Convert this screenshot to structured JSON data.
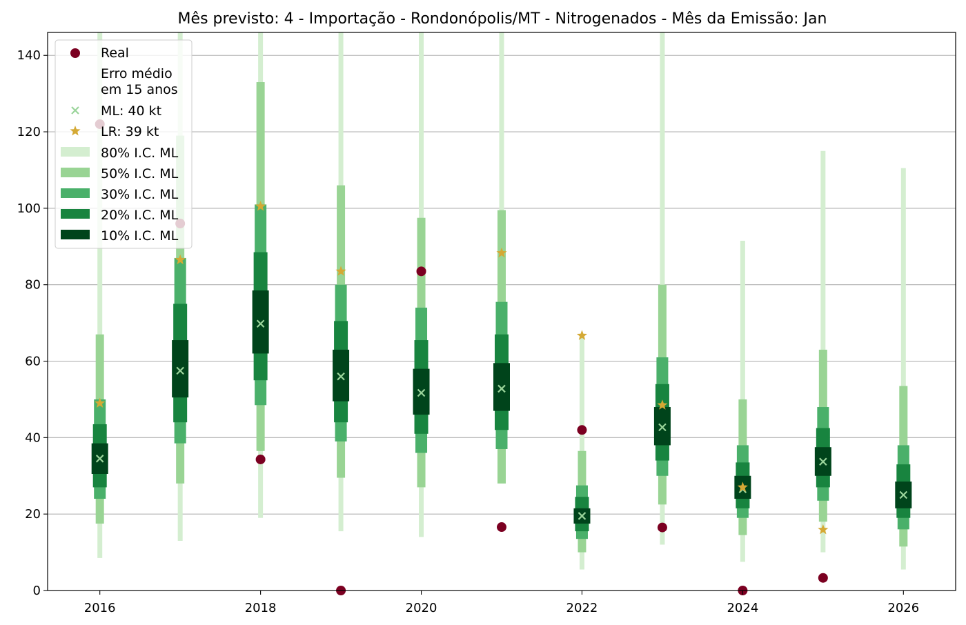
{
  "chart_data": {
    "type": "interval",
    "title": "Mês previsto: 4 - Importação - Rondonópolis/MT - Nitrogenados - Mês da Emissão: Jan",
    "xlabel": "",
    "ylabel": "",
    "xlim": [
      2015.35,
      2026.65
    ],
    "ylim": [
      0,
      146
    ],
    "xticks": [
      2016,
      2018,
      2020,
      2022,
      2024,
      2026
    ],
    "yticks": [
      0,
      20,
      40,
      60,
      80,
      100,
      120,
      140
    ],
    "grid": "horizontal",
    "legend_position": "upper-left",
    "colors": {
      "real": "#7b0021",
      "ml_marker": "#9ad49a",
      "lr_marker": "#d4a935",
      "ci80": "#d4eed0",
      "ci50": "#99d494",
      "ci30": "#4ab06a",
      "ci20": "#18843f",
      "ci10": "#00441b",
      "grid": "#b0b0b0"
    },
    "legend": {
      "real": "Real",
      "header_line1": "Erro médio",
      "header_line2": "em 15 anos",
      "ml": "ML: 40 kt",
      "lr": "LR: 39 kt",
      "ci80": "80% I.C. ML",
      "ci50": "50% I.C. ML",
      "ci30": "30% I.C. ML",
      "ci20": "20% I.C. ML",
      "ci10": "10% I.C. ML"
    },
    "points": [
      {
        "x": 2016,
        "real": 122.0,
        "ml": 34.5,
        "lr": 49.0,
        "ci80": [
          8.5,
          146
        ],
        "ci50": [
          17.5,
          67.0
        ],
        "ci30": [
          24.0,
          50.0
        ],
        "ci20": [
          27.0,
          43.5
        ],
        "ci10": [
          30.5,
          38.5
        ]
      },
      {
        "x": 2017,
        "real": 96.0,
        "ml": 57.5,
        "lr": 86.5,
        "ci80": [
          13.0,
          146
        ],
        "ci50": [
          28.0,
          119.0
        ],
        "ci30": [
          38.5,
          87.0
        ],
        "ci20": [
          44.0,
          75.0
        ],
        "ci10": [
          50.5,
          65.5
        ]
      },
      {
        "x": 2018,
        "real": 34.3,
        "ml": 69.8,
        "lr": 100.5,
        "ci80": [
          19.0,
          146
        ],
        "ci50": [
          36.5,
          133.0
        ],
        "ci30": [
          48.5,
          101.0
        ],
        "ci20": [
          55.0,
          88.5
        ],
        "ci10": [
          62.0,
          78.5
        ]
      },
      {
        "x": 2019,
        "real": 0.0,
        "ml": 56.0,
        "lr": 83.5,
        "ci80": [
          15.5,
          146
        ],
        "ci50": [
          29.5,
          106.0
        ],
        "ci30": [
          39.0,
          80.0
        ],
        "ci20": [
          44.0,
          70.5
        ],
        "ci10": [
          49.5,
          63.0
        ]
      },
      {
        "x": 2020,
        "real": 83.5,
        "ml": 51.7,
        "lr": 83.5,
        "ci80": [
          14.0,
          146
        ],
        "ci50": [
          27.0,
          97.5
        ],
        "ci30": [
          36.0,
          74.0
        ],
        "ci20": [
          41.0,
          65.5
        ],
        "ci10": [
          46.0,
          58.0
        ]
      },
      {
        "x": 2021,
        "real": 16.6,
        "ml": 52.8,
        "lr": 88.3,
        "ci80": [
          28.0,
          146
        ],
        "ci50": [
          28.0,
          99.5
        ],
        "ci30": [
          37.0,
          75.5
        ],
        "ci20": [
          42.0,
          67.0
        ],
        "ci10": [
          47.0,
          59.5
        ]
      },
      {
        "x": 2022,
        "real": 42.0,
        "ml": 19.5,
        "lr": 66.7,
        "ci80": [
          5.5,
          66.5
        ],
        "ci50": [
          10.0,
          36.5
        ],
        "ci30": [
          13.5,
          27.5
        ],
        "ci20": [
          15.5,
          24.5
        ],
        "ci10": [
          17.5,
          21.5
        ]
      },
      {
        "x": 2023,
        "real": 16.5,
        "ml": 42.7,
        "lr": 48.5,
        "ci80": [
          12.0,
          146
        ],
        "ci50": [
          22.5,
          80.0
        ],
        "ci30": [
          30.0,
          61.0
        ],
        "ci20": [
          34.0,
          54.0
        ],
        "ci10": [
          38.0,
          48.0
        ]
      },
      {
        "x": 2024,
        "real": 0.0,
        "ml": 26.5,
        "lr": 27.0,
        "ci80": [
          7.5,
          91.5
        ],
        "ci50": [
          14.5,
          50.0
        ],
        "ci30": [
          19.0,
          38.0
        ],
        "ci20": [
          21.5,
          33.5
        ],
        "ci10": [
          24.0,
          30.0
        ]
      },
      {
        "x": 2025,
        "real": 3.3,
        "ml": 33.7,
        "lr": 15.9,
        "ci80": [
          10.0,
          115.0
        ],
        "ci50": [
          18.0,
          63.0
        ],
        "ci30": [
          23.5,
          48.0
        ],
        "ci20": [
          27.0,
          42.5
        ],
        "ci10": [
          30.0,
          37.5
        ]
      },
      {
        "x": 2026,
        "real": null,
        "ml": 25.0,
        "lr": null,
        "ci80": [
          5.5,
          110.5
        ],
        "ci50": [
          11.5,
          53.5
        ],
        "ci30": [
          16.0,
          38.0
        ],
        "ci20": [
          19.0,
          33.0
        ],
        "ci10": [
          21.5,
          28.5
        ]
      }
    ]
  }
}
